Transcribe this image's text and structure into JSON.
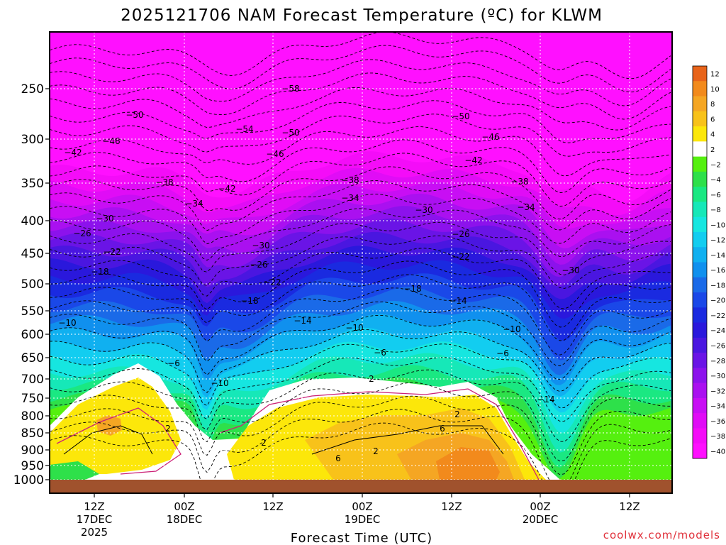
{
  "title": "2025121706 NAM Forecast Temperature (ºC) for KLWM",
  "xlabel": "Forecast Time (UTC)",
  "credit": "coolwx.com/models",
  "chart_data": {
    "type": "heatmap",
    "title": "2025121706 NAM Forecast Temperature (ºC) for KLWM",
    "xlabel": "Forecast Time (UTC)",
    "ylabel": "",
    "pressure_ticks": [
      "250",
      "300",
      "350",
      "400",
      "450",
      "500",
      "550",
      "600",
      "650",
      "700",
      "750",
      "800",
      "850",
      "900",
      "950",
      "1000"
    ],
    "time_ticks": [
      {
        "lines": [
          "12Z",
          "17DEC",
          "2025"
        ]
      },
      {
        "lines": [
          "00Z",
          "18DEC"
        ]
      },
      {
        "lines": [
          "12Z"
        ]
      },
      {
        "lines": [
          "00Z",
          "19DEC"
        ]
      },
      {
        "lines": [
          "12Z"
        ]
      },
      {
        "lines": [
          "00Z",
          "20DEC"
        ]
      },
      {
        "lines": [
          "12Z"
        ]
      }
    ],
    "colorbar": {
      "levels": [
        "12",
        "10",
        "8",
        "6",
        "4",
        "2",
        "-2",
        "-4",
        "-6",
        "-8",
        "-10",
        "-12",
        "-14",
        "-16",
        "-18",
        "-20",
        "-22",
        "-24",
        "-26",
        "-28",
        "-30",
        "-32",
        "-34",
        "-36",
        "-38",
        "-40"
      ],
      "colors": [
        "#e8641a",
        "#f28a1c",
        "#f5a623",
        "#f8c21a",
        "#fce70a",
        "#ffffff",
        "#55f00f",
        "#2ee04a",
        "#1ae882",
        "#16e8b8",
        "#16e6e0",
        "#12cdf0",
        "#10b0f0",
        "#1090ee",
        "#1a6ae8",
        "#1a48e8",
        "#1a2ae0",
        "#2a18dc",
        "#4a16e0",
        "#6a14e6",
        "#8c12ec",
        "#aa10f0",
        "#c80ef4",
        "#e00cf6",
        "#f40cf8",
        "#ff10ff"
      ]
    },
    "contour_labels": [
      "-58",
      "-54",
      "-50",
      "-50",
      "-50",
      "-46",
      "-46",
      "-46",
      "-42",
      "-42",
      "-42",
      "-38",
      "-38",
      "-38",
      "-34",
      "-34",
      "-34",
      "-30",
      "-30",
      "-30",
      "-30",
      "-26",
      "-26",
      "-26",
      "-22",
      "-22",
      "-22",
      "-18",
      "-18",
      "-18",
      "-14",
      "-14",
      "-14",
      "-10",
      "-10",
      "-10",
      "-10",
      "-6",
      "-6",
      "-6",
      "2",
      "2",
      "2",
      "2",
      "2",
      "6",
      "6"
    ]
  }
}
